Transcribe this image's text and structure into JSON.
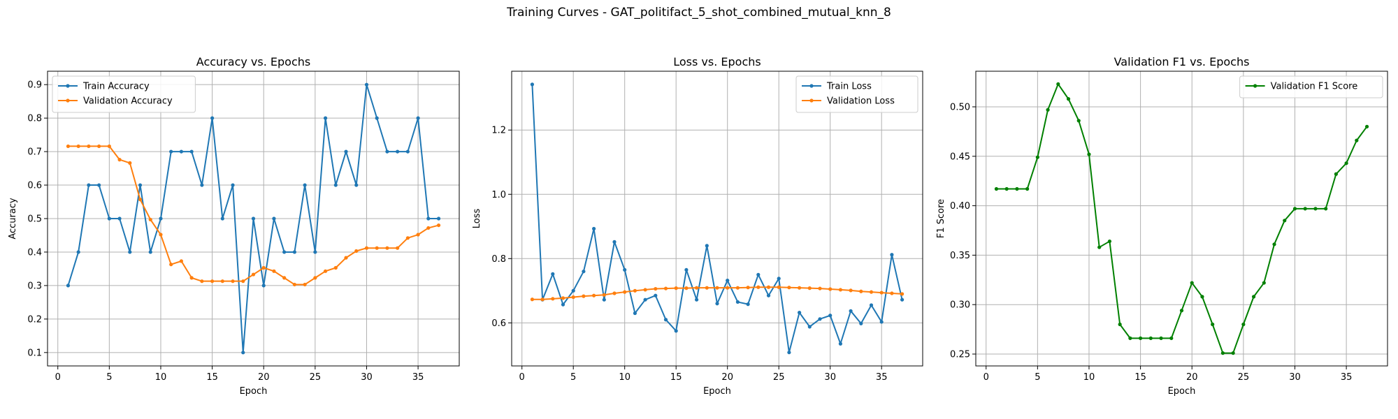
{
  "figure": {
    "title": "Training Curves - GAT_politifact_5_shot_combined_mutual_knn_8"
  },
  "colors": {
    "blue": "#1f77b4",
    "orange": "#ff7f0e",
    "green": "#008000",
    "grid": "#b0b0b0"
  },
  "chart_data": [
    {
      "type": "line",
      "title": "Accuracy vs. Epochs",
      "xlabel": "Epoch",
      "ylabel": "Accuracy",
      "xlim": [
        -1,
        39
      ],
      "ylim": [
        0.06,
        0.94
      ],
      "xticks": [
        0,
        5,
        10,
        15,
        20,
        25,
        30,
        35
      ],
      "yticks": [
        0.1,
        0.2,
        0.3,
        0.4,
        0.5,
        0.6,
        0.7,
        0.8,
        0.9
      ],
      "ytick_labels": [
        "0.1",
        "0.2",
        "0.3",
        "0.4",
        "0.5",
        "0.6",
        "0.7",
        "0.8",
        "0.9"
      ],
      "grid": true,
      "legend_position": "top-left",
      "x": [
        1,
        2,
        3,
        4,
        5,
        6,
        7,
        8,
        9,
        10,
        11,
        12,
        13,
        14,
        15,
        16,
        17,
        18,
        19,
        20,
        21,
        22,
        23,
        24,
        25,
        26,
        27,
        28,
        29,
        30,
        31,
        32,
        33,
        34,
        35,
        36,
        37
      ],
      "series": [
        {
          "name": "Train Accuracy",
          "color": "#1f77b4",
          "values": [
            0.3,
            0.4,
            0.6,
            0.6,
            0.5,
            0.5,
            0.4,
            0.6,
            0.4,
            0.5,
            0.7,
            0.7,
            0.7,
            0.6,
            0.8,
            0.5,
            0.6,
            0.1,
            0.5,
            0.3,
            0.5,
            0.4,
            0.4,
            0.6,
            0.4,
            0.8,
            0.6,
            0.7,
            0.6,
            0.9,
            0.8,
            0.7,
            0.7,
            0.7,
            0.8,
            0.5,
            0.5
          ]
        },
        {
          "name": "Validation Accuracy",
          "color": "#ff7f0e",
          "values": [
            0.716,
            0.716,
            0.716,
            0.716,
            0.716,
            0.676,
            0.666,
            0.557,
            0.497,
            0.452,
            0.363,
            0.373,
            0.323,
            0.313,
            0.313,
            0.313,
            0.313,
            0.313,
            0.333,
            0.353,
            0.343,
            0.323,
            0.303,
            0.303,
            0.323,
            0.343,
            0.353,
            0.383,
            0.403,
            0.412,
            0.412,
            0.412,
            0.412,
            0.442,
            0.452,
            0.472,
            0.48
          ]
        }
      ]
    },
    {
      "type": "line",
      "title": "Loss vs. Epochs",
      "xlabel": "Epoch",
      "ylabel": "Loss",
      "xlim": [
        -1,
        39
      ],
      "ylim": [
        0.466,
        1.383
      ],
      "xticks": [
        0,
        5,
        10,
        15,
        20,
        25,
        30,
        35
      ],
      "yticks": [
        0.6,
        0.8,
        1.0,
        1.2
      ],
      "ytick_labels": [
        "0.6",
        "0.8",
        "1.0",
        "1.2"
      ],
      "grid": true,
      "legend_position": "top-right",
      "x": [
        1,
        2,
        3,
        4,
        5,
        6,
        7,
        8,
        9,
        10,
        11,
        12,
        13,
        14,
        15,
        16,
        17,
        18,
        19,
        20,
        21,
        22,
        23,
        24,
        25,
        26,
        27,
        28,
        29,
        30,
        31,
        32,
        33,
        34,
        35,
        36,
        37
      ],
      "series": [
        {
          "name": "Train Loss",
          "color": "#1f77b4",
          "values": [
            1.342,
            0.672,
            0.752,
            0.657,
            0.7,
            0.76,
            0.893,
            0.672,
            0.852,
            0.765,
            0.63,
            0.672,
            0.685,
            0.61,
            0.575,
            0.765,
            0.672,
            0.84,
            0.66,
            0.732,
            0.665,
            0.658,
            0.75,
            0.685,
            0.738,
            0.508,
            0.632,
            0.588,
            0.612,
            0.623,
            0.535,
            0.637,
            0.598,
            0.655,
            0.603,
            0.812,
            0.672
          ]
        },
        {
          "name": "Validation Loss",
          "color": "#ff7f0e",
          "values": [
            0.673,
            0.673,
            0.675,
            0.677,
            0.68,
            0.683,
            0.685,
            0.687,
            0.692,
            0.696,
            0.7,
            0.703,
            0.706,
            0.707,
            0.708,
            0.708,
            0.709,
            0.709,
            0.709,
            0.709,
            0.709,
            0.71,
            0.711,
            0.711,
            0.711,
            0.71,
            0.709,
            0.708,
            0.707,
            0.705,
            0.703,
            0.701,
            0.698,
            0.696,
            0.694,
            0.692,
            0.69
          ]
        }
      ]
    },
    {
      "type": "line",
      "title": "Validation F1 vs. Epochs",
      "xlabel": "Epoch",
      "ylabel": "F1 Score",
      "xlim": [
        -1,
        39
      ],
      "ylim": [
        0.238,
        0.536
      ],
      "xticks": [
        0,
        5,
        10,
        15,
        20,
        25,
        30,
        35
      ],
      "yticks": [
        0.25,
        0.3,
        0.35,
        0.4,
        0.45,
        0.5
      ],
      "ytick_labels": [
        "0.25",
        "0.30",
        "0.35",
        "0.40",
        "0.45",
        "0.50"
      ],
      "grid": true,
      "legend_position": "top-right",
      "x": [
        1,
        2,
        3,
        4,
        5,
        6,
        7,
        8,
        9,
        10,
        11,
        12,
        13,
        14,
        15,
        16,
        17,
        18,
        19,
        20,
        21,
        22,
        23,
        24,
        25,
        26,
        27,
        28,
        29,
        30,
        31,
        32,
        33,
        34,
        35,
        36,
        37
      ],
      "series": [
        {
          "name": "Validation F1 Score",
          "color": "#008000",
          "values": [
            0.417,
            0.417,
            0.417,
            0.417,
            0.449,
            0.497,
            0.523,
            0.508,
            0.486,
            0.452,
            0.358,
            0.364,
            0.28,
            0.266,
            0.266,
            0.266,
            0.266,
            0.266,
            0.294,
            0.322,
            0.308,
            0.28,
            0.251,
            0.251,
            0.28,
            0.308,
            0.322,
            0.361,
            0.385,
            0.397,
            0.397,
            0.397,
            0.397,
            0.432,
            0.443,
            0.466,
            0.48
          ]
        }
      ]
    }
  ]
}
